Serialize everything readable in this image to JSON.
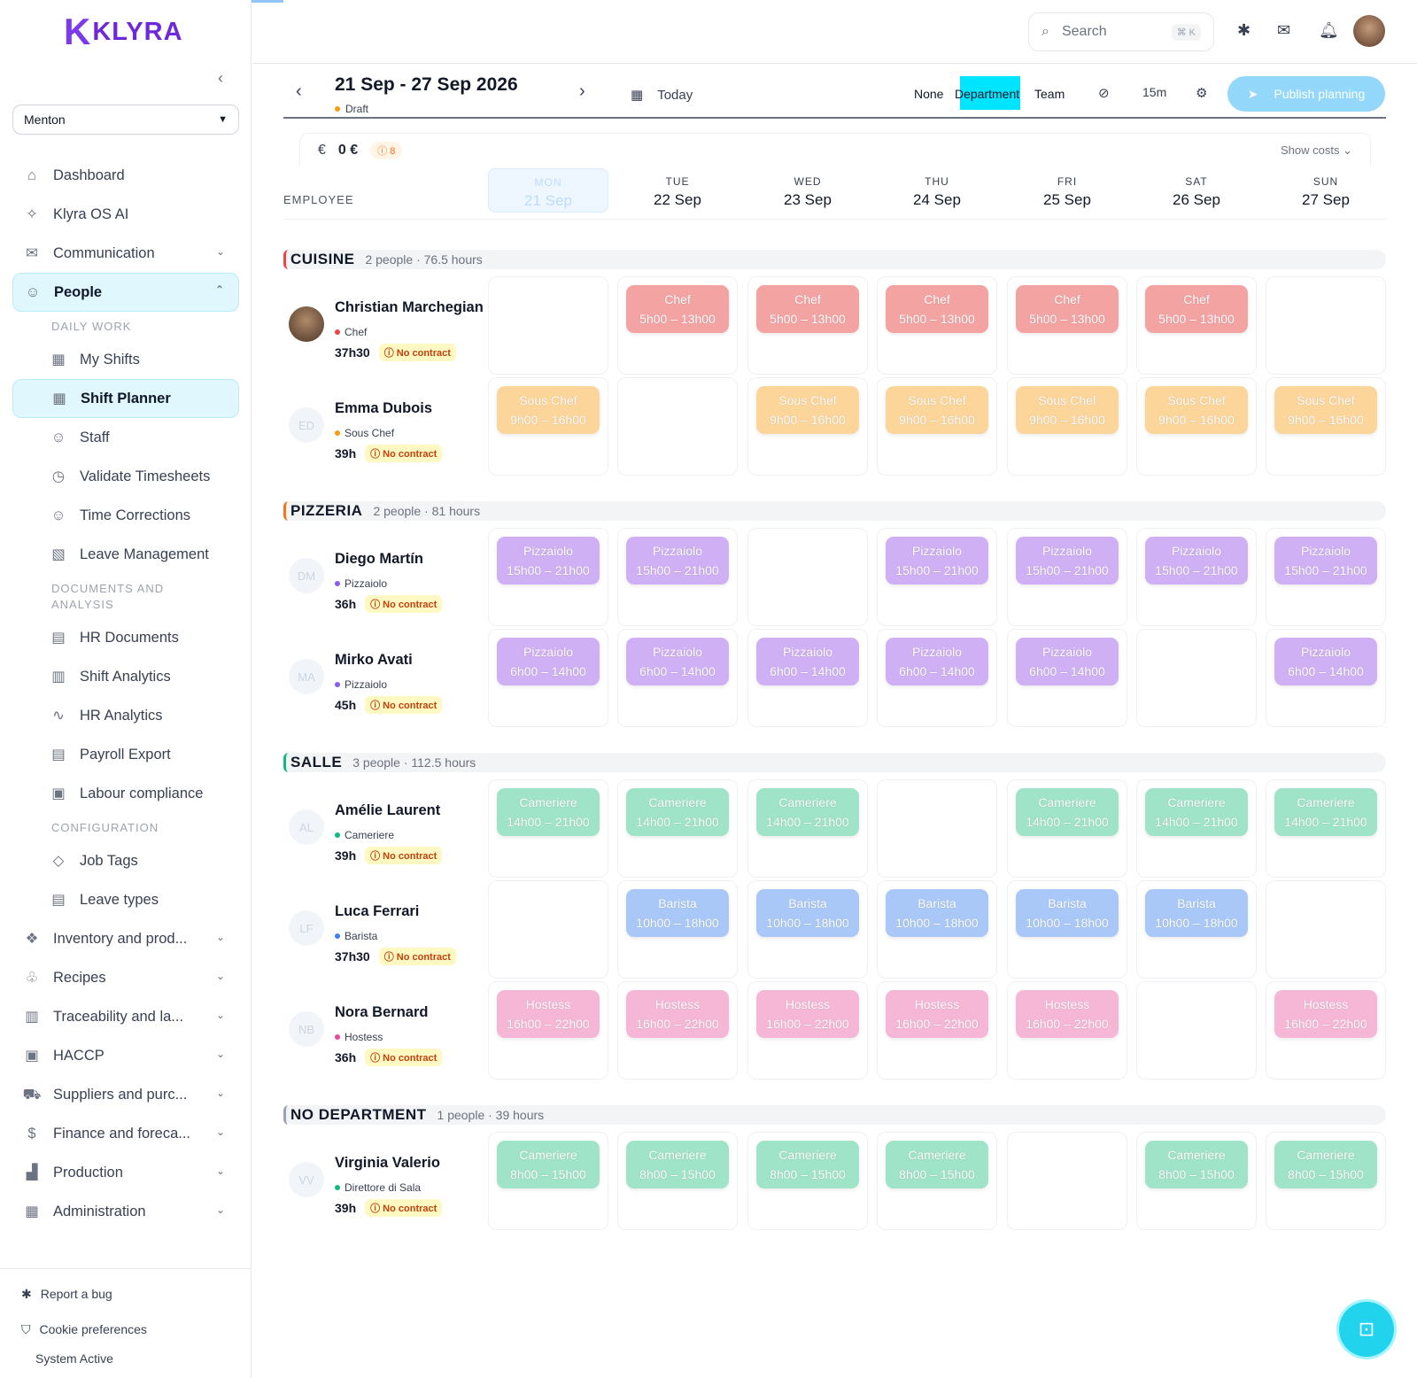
{
  "brand": {
    "name": "KLYRA"
  },
  "location": "Menton",
  "nav": {
    "dashboard": "Dashboard",
    "ai": "Klyra OS AI",
    "communication": "Communication",
    "people": "People",
    "daily_work": "DAILY WORK",
    "my_shifts": "My Shifts",
    "shift_planner": "Shift Planner",
    "staff": "Staff",
    "validate": "Validate Timesheets",
    "corrections": "Time Corrections",
    "leave": "Leave Management",
    "docs_label": "DOCUMENTS AND ANALYSIS",
    "hr_docs": "HR Documents",
    "shift_analytics": "Shift Analytics",
    "hr_analytics": "HR Analytics",
    "payroll": "Payroll Export",
    "labour": "Labour compliance",
    "config_label": "CONFIGURATION",
    "job_tags": "Job Tags",
    "leave_types": "Leave types",
    "inventory": "Inventory and prod...",
    "recipes": "Recipes",
    "traceability": "Traceability and la...",
    "haccp": "HACCP",
    "suppliers": "Suppliers and purc...",
    "finance": "Finance and foreca...",
    "production": "Production",
    "administration": "Administration"
  },
  "bottom": {
    "bug": "Report a bug",
    "cookies": "Cookie preferences",
    "system": "System Active"
  },
  "header": {
    "search_placeholder": "Search",
    "shortcut": "⌘ K"
  },
  "toolbar": {
    "week": "21 Sep - 27 Sep 2026",
    "status": "Draft",
    "today": "Today",
    "group_none": "None",
    "group_department": "Department",
    "group_team": "Team",
    "interval": "15m",
    "publish": "Publish planning"
  },
  "costs": {
    "currency": "€",
    "total": "0 €",
    "warnings": "8",
    "show": "Show costs"
  },
  "grid": {
    "employee_label": "EMPLOYEE",
    "days": [
      {
        "dn": "MON",
        "dd": "21 Sep"
      },
      {
        "dn": "TUE",
        "dd": "22 Sep"
      },
      {
        "dn": "WED",
        "dd": "23 Sep"
      },
      {
        "dn": "THU",
        "dd": "24 Sep"
      },
      {
        "dn": "FRI",
        "dd": "25 Sep"
      },
      {
        "dn": "SAT",
        "dd": "26 Sep"
      },
      {
        "dn": "SUN",
        "dd": "27 Sep"
      }
    ],
    "no_contract": "No contract",
    "departments": [
      {
        "name": "CUISINE",
        "meta": "2 people · 76.5 hours",
        "color": "#ef4444",
        "employees": [
          {
            "name": "Christian Marchegiani",
            "initials": "",
            "photo": true,
            "role": "Chef",
            "role_color": "#ef4444",
            "hours": "37h30",
            "shifts": [
              null,
              {
                "t": "Chef",
                "h": "5h00 – 13h00"
              },
              {
                "t": "Chef",
                "h": "5h00 – 13h00"
              },
              {
                "t": "Chef",
                "h": "5h00 – 13h00"
              },
              {
                "t": "Chef",
                "h": "5h00 – 13h00"
              },
              {
                "t": "Chef",
                "h": "5h00 – 13h00"
              },
              null
            ],
            "color": "#f4a3a3"
          },
          {
            "name": "Emma Dubois",
            "initials": "ED",
            "photo": false,
            "role": "Sous Chef",
            "role_color": "#f59e0b",
            "hours": "39h",
            "shifts": [
              {
                "t": "Sous Chef",
                "h": "9h00 – 16h00"
              },
              null,
              {
                "t": "Sous Chef",
                "h": "9h00 – 16h00"
              },
              {
                "t": "Sous Chef",
                "h": "9h00 – 16h00"
              },
              {
                "t": "Sous Chef",
                "h": "9h00 – 16h00"
              },
              {
                "t": "Sous Chef",
                "h": "9h00 – 16h00"
              },
              {
                "t": "Sous Chef",
                "h": "9h00 – 16h00"
              }
            ],
            "color": "#fcd59a"
          }
        ]
      },
      {
        "name": "PIZZERIA",
        "meta": "2 people · 81 hours",
        "color": "#f97316",
        "employees": [
          {
            "name": "Diego Martín",
            "initials": "DM",
            "photo": false,
            "role": "Pizzaiolo",
            "role_color": "#8b5cf6",
            "hours": "36h",
            "shifts": [
              {
                "t": "Pizzaiolo",
                "h": "15h00 – 21h00"
              },
              {
                "t": "Pizzaiolo",
                "h": "15h00 – 21h00"
              },
              null,
              {
                "t": "Pizzaiolo",
                "h": "15h00 – 21h00"
              },
              {
                "t": "Pizzaiolo",
                "h": "15h00 – 21h00"
              },
              {
                "t": "Pizzaiolo",
                "h": "15h00 – 21h00"
              },
              {
                "t": "Pizzaiolo",
                "h": "15h00 – 21h00"
              }
            ],
            "color": "#d0b0f5"
          },
          {
            "name": "Mirko Avati",
            "initials": "MA",
            "photo": false,
            "role": "Pizzaiolo",
            "role_color": "#8b5cf6",
            "hours": "45h",
            "shifts": [
              {
                "t": "Pizzaiolo",
                "h": "6h00 – 14h00"
              },
              {
                "t": "Pizzaiolo",
                "h": "6h00 – 14h00"
              },
              {
                "t": "Pizzaiolo",
                "h": "6h00 – 14h00"
              },
              {
                "t": "Pizzaiolo",
                "h": "6h00 – 14h00"
              },
              {
                "t": "Pizzaiolo",
                "h": "6h00 – 14h00"
              },
              null,
              {
                "t": "Pizzaiolo",
                "h": "6h00 – 14h00"
              }
            ],
            "color": "#d0b0f5"
          }
        ]
      },
      {
        "name": "SALLE",
        "meta": "3 people · 112.5 hours",
        "color": "#10b981",
        "employees": [
          {
            "name": "Amélie Laurent",
            "initials": "AL",
            "photo": false,
            "role": "Cameriere",
            "role_color": "#10b981",
            "hours": "39h",
            "shifts": [
              {
                "t": "Cameriere",
                "h": "14h00 – 21h00"
              },
              {
                "t": "Cameriere",
                "h": "14h00 – 21h00"
              },
              {
                "t": "Cameriere",
                "h": "14h00 – 21h00"
              },
              null,
              {
                "t": "Cameriere",
                "h": "14h00 – 21h00"
              },
              {
                "t": "Cameriere",
                "h": "14h00 – 21h00"
              },
              {
                "t": "Cameriere",
                "h": "14h00 – 21h00"
              }
            ],
            "color": "#9fe3c8"
          },
          {
            "name": "Luca Ferrari",
            "initials": "LF",
            "photo": false,
            "role": "Barista",
            "role_color": "#3b82f6",
            "hours": "37h30",
            "shifts": [
              null,
              {
                "t": "Barista",
                "h": "10h00 – 18h00"
              },
              {
                "t": "Barista",
                "h": "10h00 – 18h00"
              },
              {
                "t": "Barista",
                "h": "10h00 – 18h00"
              },
              {
                "t": "Barista",
                "h": "10h00 – 18h00"
              },
              {
                "t": "Barista",
                "h": "10h00 – 18h00"
              },
              null
            ],
            "color": "#a9c8f7"
          },
          {
            "name": "Nora Bernard",
            "initials": "NB",
            "photo": false,
            "role": "Hostess",
            "role_color": "#ec4899",
            "hours": "36h",
            "shifts": [
              {
                "t": "Hostess",
                "h": "16h00 – 22h00"
              },
              {
                "t": "Hostess",
                "h": "16h00 – 22h00"
              },
              {
                "t": "Hostess",
                "h": "16h00 – 22h00"
              },
              {
                "t": "Hostess",
                "h": "16h00 – 22h00"
              },
              {
                "t": "Hostess",
                "h": "16h00 – 22h00"
              },
              null,
              {
                "t": "Hostess",
                "h": "16h00 – 22h00"
              }
            ],
            "color": "#f6b6d6"
          }
        ]
      },
      {
        "name": "NO DEPARTMENT",
        "meta": "1 people · 39 hours",
        "color": "#9ca3af",
        "employees": [
          {
            "name": "Virginia Valerio",
            "initials": "VV",
            "photo": false,
            "role": "Direttore di Sala",
            "role_color": "#10b981",
            "hours": "39h",
            "shifts": [
              {
                "t": "Cameriere",
                "h": "8h00 – 15h00"
              },
              {
                "t": "Cameriere",
                "h": "8h00 – 15h00"
              },
              {
                "t": "Cameriere",
                "h": "8h00 – 15h00"
              },
              {
                "t": "Cameriere",
                "h": "8h00 – 15h00"
              },
              null,
              {
                "t": "Cameriere",
                "h": "8h00 – 15h00"
              },
              {
                "t": "Cameriere",
                "h": "8h00 – 15h00"
              }
            ],
            "color": "#9fe3c8"
          }
        ]
      }
    ]
  }
}
